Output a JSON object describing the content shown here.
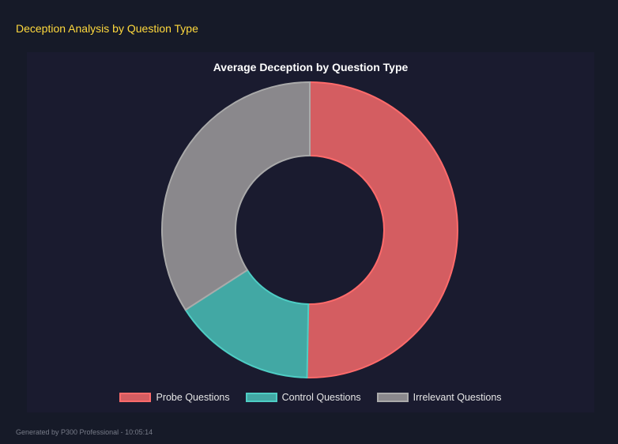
{
  "heading": "Deception Analysis by Question Type",
  "footer": "Generated by P300 Professional - 10:05:14",
  "chart_data": {
    "type": "doughnut",
    "title": "Average Deception by Question Type",
    "categories": [
      "Probe Questions",
      "Control Questions",
      "Irrelevant Questions"
    ],
    "values": [
      50.3,
      15.6,
      34.1
    ],
    "colors": {
      "fill": [
        "#d45d61",
        "#42a8a4",
        "#8a888c"
      ],
      "border": [
        "#ff6b6b",
        "#4ecdc4",
        "#aaaaaa"
      ]
    },
    "legend": "bottom"
  }
}
